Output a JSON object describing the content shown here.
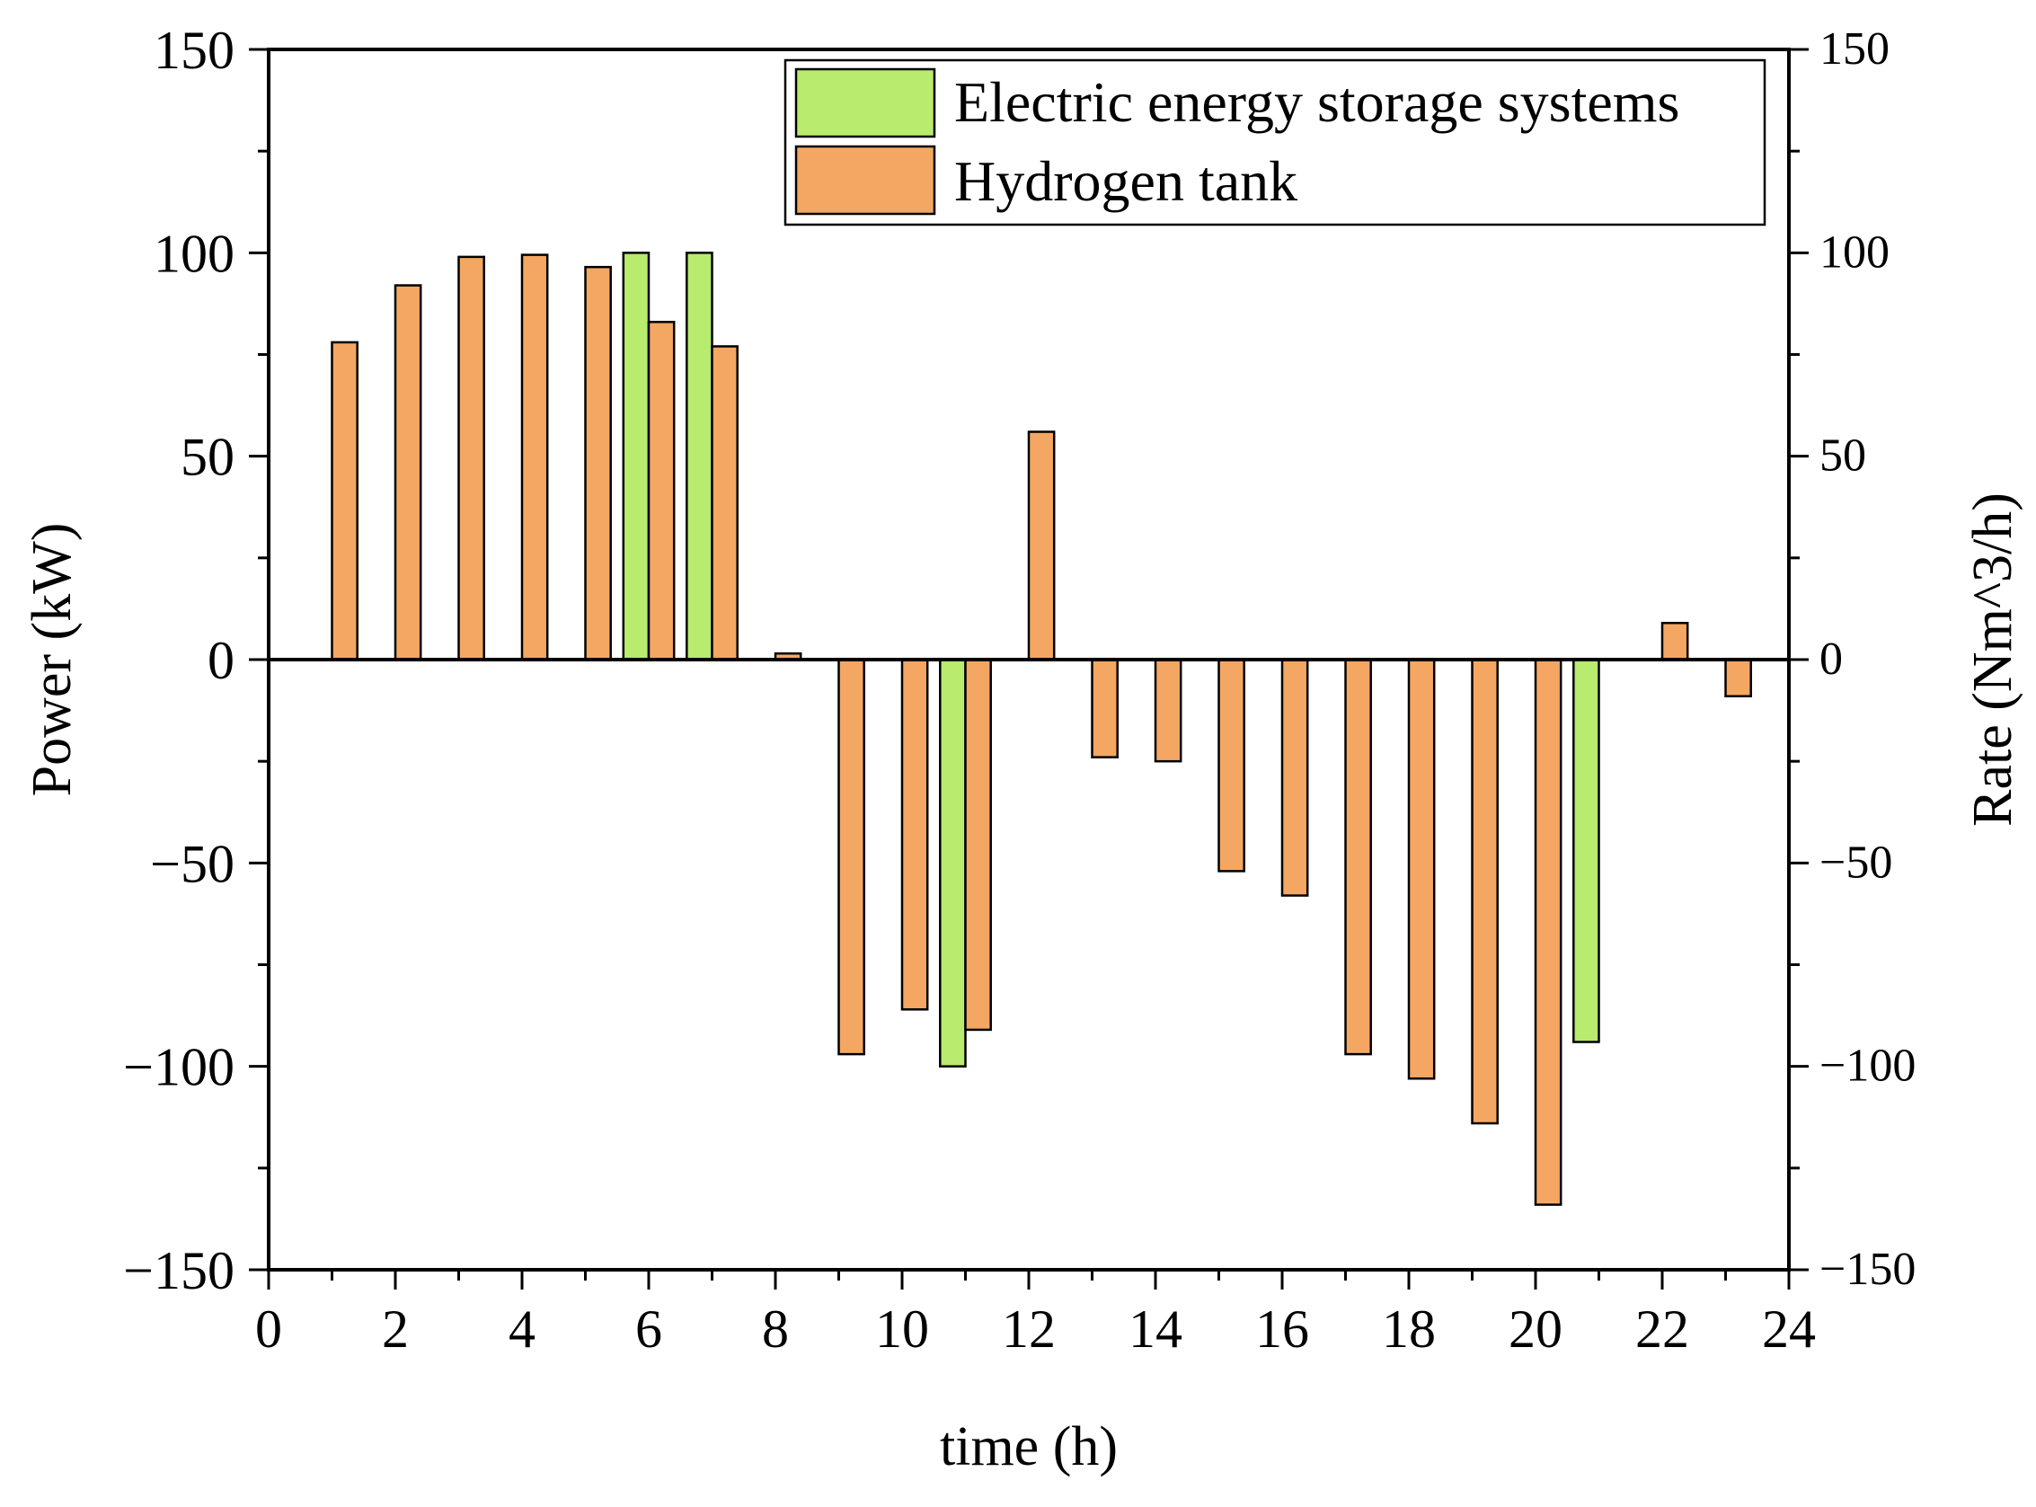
{
  "chart_data": {
    "type": "bar",
    "title": "",
    "xlabel": "time (h)",
    "ylabel": "Power (kW)",
    "y2label": "Rate (Nm^3/h)",
    "xlim": [
      0,
      24
    ],
    "ylim": [
      -150,
      150
    ],
    "y2lim": [
      -150,
      150
    ],
    "xticks": [
      0,
      2,
      4,
      6,
      8,
      10,
      12,
      14,
      16,
      18,
      20,
      22,
      24
    ],
    "yticks": [
      150,
      100,
      50,
      0,
      -50,
      -100,
      -150
    ],
    "ytick_labels": [
      "150",
      "100",
      "50",
      "0",
      "−50",
      "−100",
      "−150"
    ],
    "y2ticks": [
      150,
      100,
      50,
      0,
      -50,
      -100,
      -150
    ],
    "y2tick_labels": [
      "150",
      "100",
      "50",
      "0",
      "−50",
      "−100",
      "−150"
    ],
    "legend_position": "top-right",
    "series": [
      {
        "name": "Electric energy storage systems",
        "color": "#b8eb6e",
        "axis": "left",
        "x": [
          5.8,
          6.8,
          10.8,
          20.8
        ],
        "values": [
          100,
          100,
          -100,
          -94
        ]
      },
      {
        "name": "Hydrogen tank",
        "color": "#f4a762",
        "axis": "right",
        "x": [
          1.2,
          2.2,
          3.2,
          4.2,
          5.2,
          6.2,
          7.2,
          8.2,
          9.2,
          10.2,
          11.2,
          12.2,
          13.2,
          14.2,
          15.2,
          16.2,
          17.2,
          18.2,
          19.2,
          20.2,
          21.2,
          22.2,
          23.2
        ],
        "values": [
          78,
          92,
          99,
          99.5,
          96.5,
          83,
          77,
          1.5,
          -97,
          -86,
          -91,
          56,
          -24,
          -25,
          -52,
          -58,
          -97,
          -103,
          -114,
          -134,
          0,
          9,
          -9
        ]
      }
    ]
  }
}
